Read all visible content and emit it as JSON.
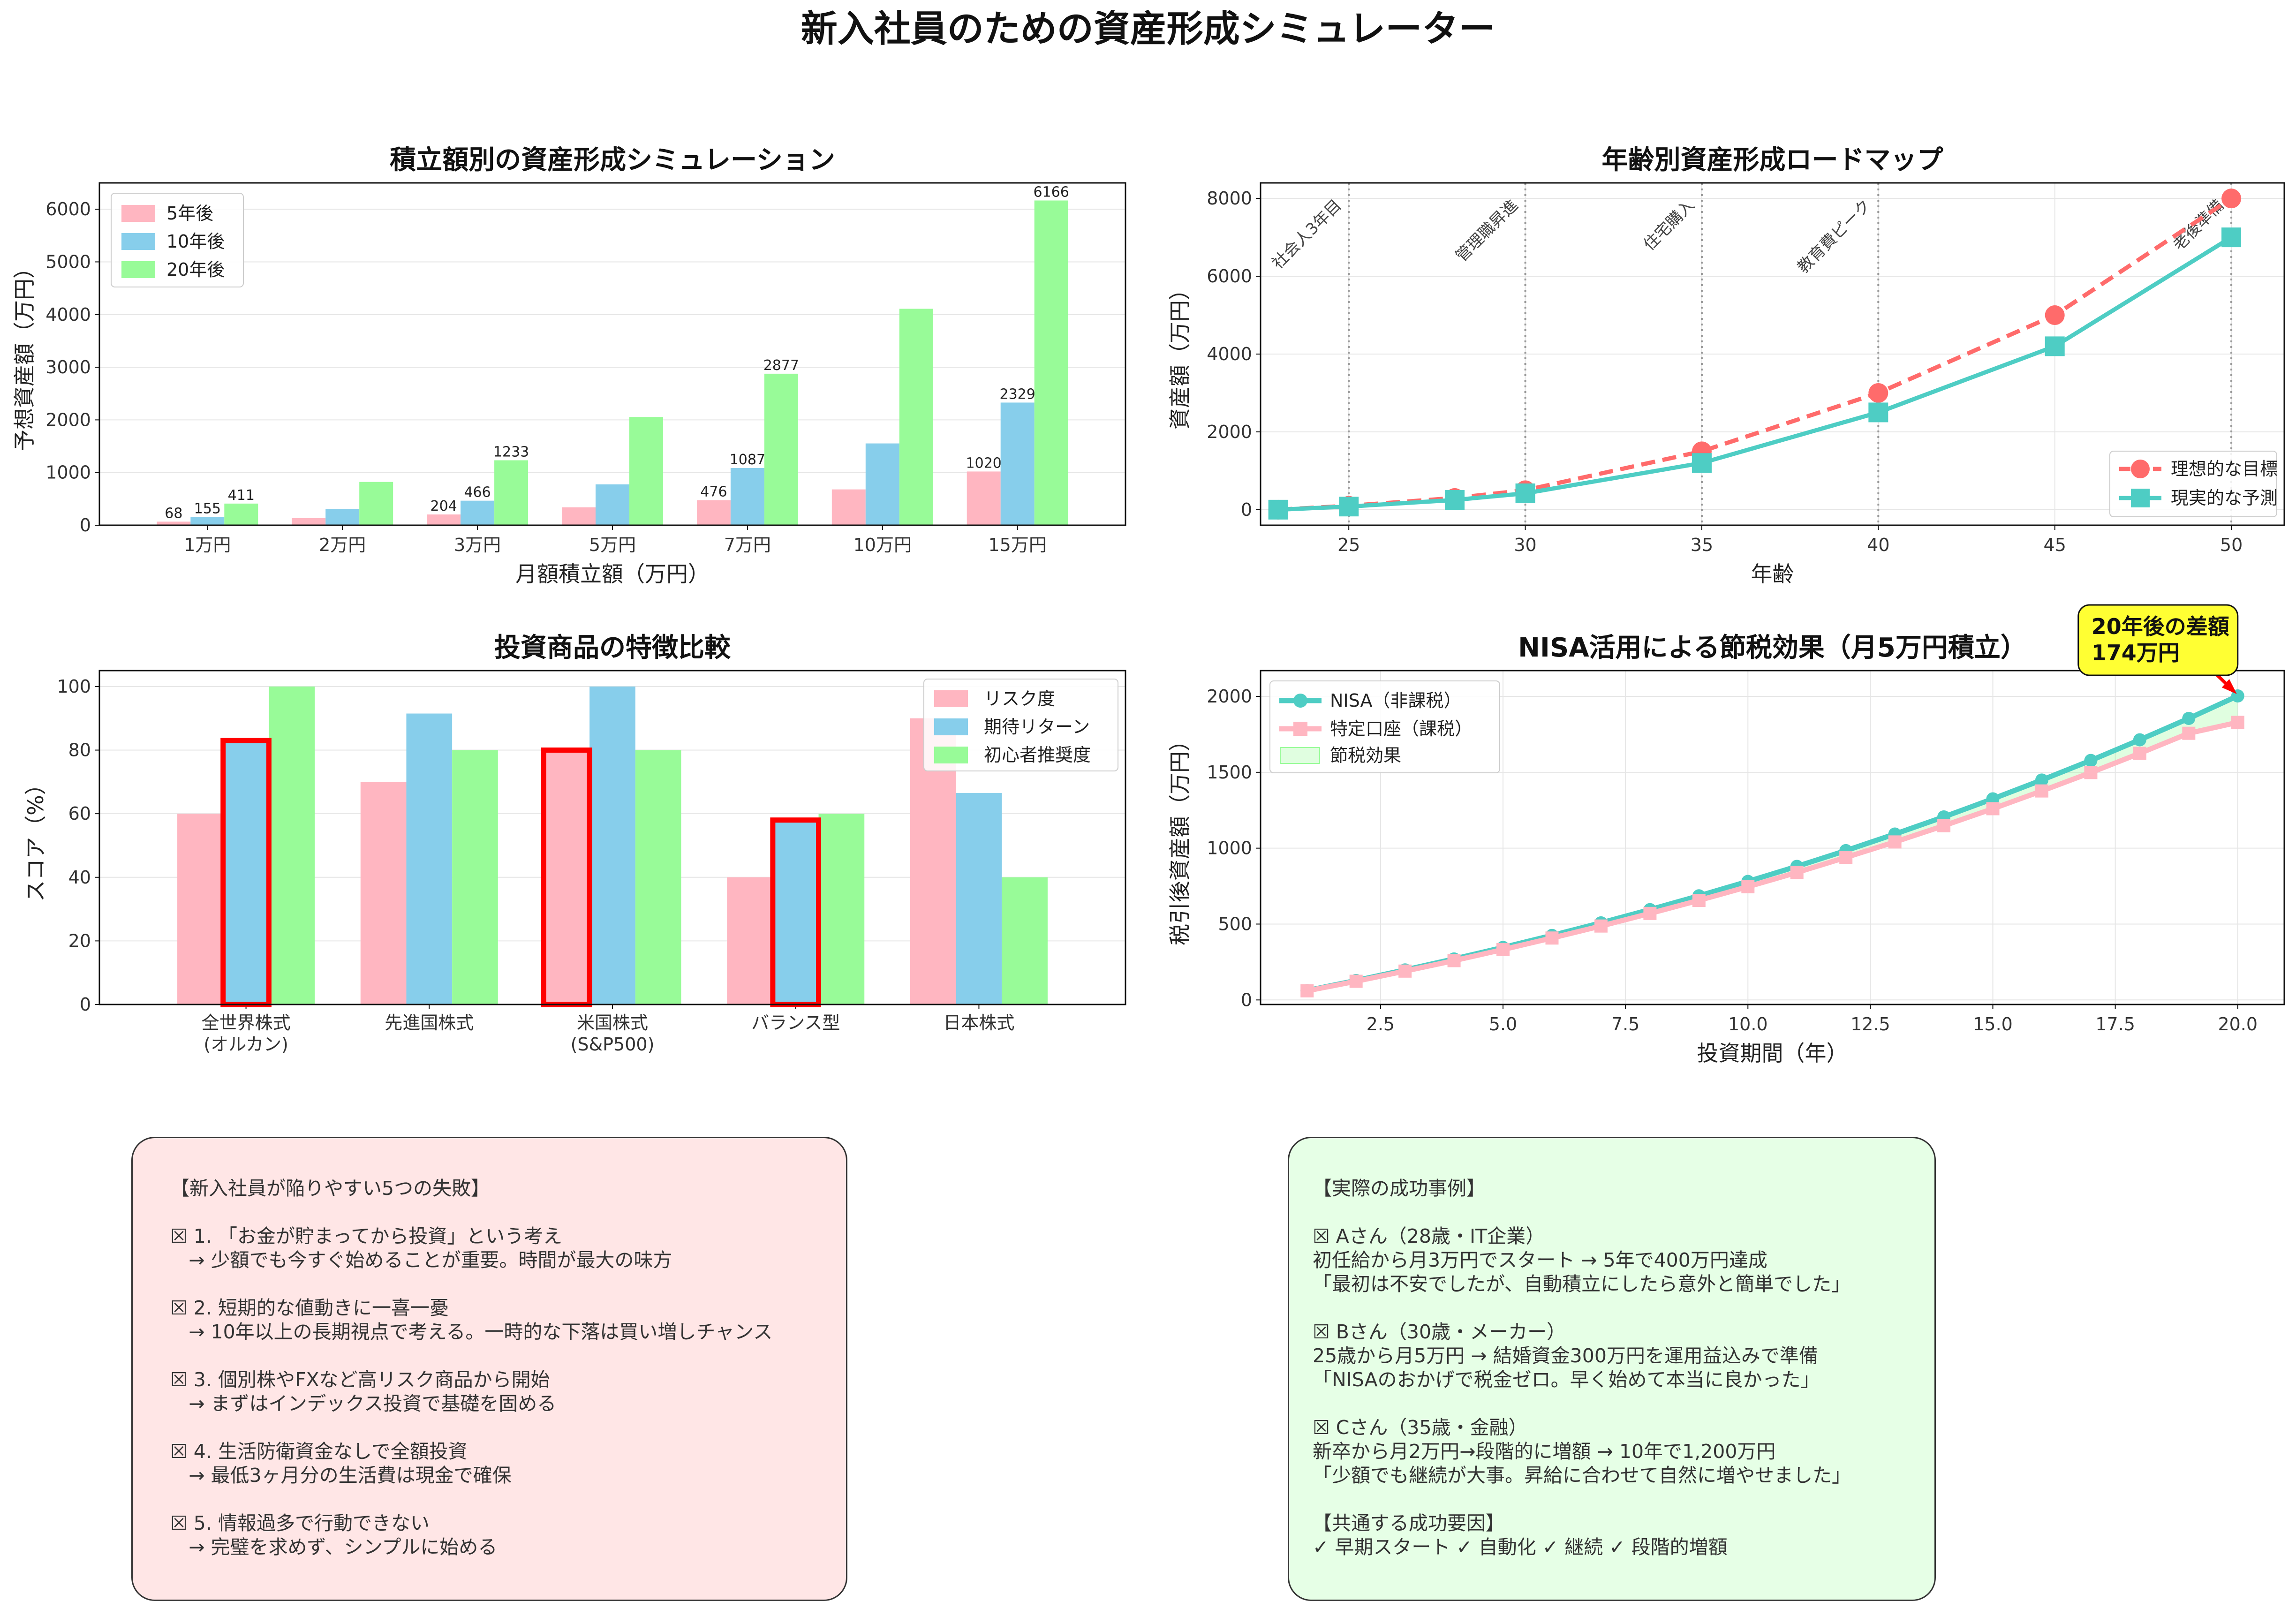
{
  "suptitle": "新入社員のための資産形成シミュレーター",
  "colors": {
    "pink": "#ffb6c1",
    "blue": "#87ceeb",
    "green": "#98fb98",
    "ideal": "#ff6b6b",
    "real": "#4ecdc4",
    "highlight": "#ff0000",
    "annotation": "#ffff33"
  },
  "chart_data": [
    {
      "type": "bar",
      "title": "積立額別の資産形成シミュレーション",
      "xlabel": "月額積立額（万円）",
      "ylabel": "予想資産額（万円）",
      "ylim": [
        0,
        6500
      ],
      "yticks": [
        0,
        1000,
        2000,
        3000,
        4000,
        5000,
        6000
      ],
      "categories": [
        "1万円",
        "2万円",
        "3万円",
        "5万円",
        "7万円",
        "10万円",
        "15万円"
      ],
      "series": [
        {
          "name": "5年後",
          "values": [
            68,
            136,
            204,
            340,
            476,
            680,
            1020
          ],
          "labels": [
            "68",
            "",
            "204",
            "",
            "476",
            "",
            "1020"
          ]
        },
        {
          "name": "10年後",
          "values": [
            155,
            310,
            466,
            776,
            1087,
            1553,
            2329
          ],
          "labels": [
            "155",
            "",
            "466",
            "",
            "1087",
            "",
            "2329"
          ]
        },
        {
          "name": "20年後",
          "values": [
            411,
            822,
            1233,
            2055,
            2877,
            4110,
            6166
          ],
          "labels": [
            "411",
            "",
            "1233",
            "",
            "2877",
            "",
            "6166"
          ]
        }
      ],
      "legend": "top-left",
      "grid": true
    },
    {
      "type": "line",
      "title": "年齢別資産形成ロードマップ",
      "xlabel": "年齢",
      "ylabel": "資産額（万円）",
      "xlim": [
        22.5,
        51.5
      ],
      "ylim": [
        -400,
        8400
      ],
      "xticks": [
        25,
        30,
        35,
        40,
        45,
        50
      ],
      "yticks": [
        0,
        2000,
        4000,
        6000,
        8000
      ],
      "x": [
        23,
        25,
        28,
        30,
        35,
        40,
        45,
        50
      ],
      "series": [
        {
          "name": "理想的な目標",
          "values": [
            0,
            100,
            300,
            500,
            1500,
            3000,
            5000,
            8000
          ],
          "style": "dashed",
          "marker": "circle"
        },
        {
          "name": "現実的な予測",
          "values": [
            0,
            80,
            250,
            420,
            1200,
            2500,
            4200,
            7000
          ],
          "style": "solid",
          "marker": "square"
        }
      ],
      "events": [
        {
          "age": 25,
          "label": "社会人3年目"
        },
        {
          "age": 30,
          "label": "管理職昇進"
        },
        {
          "age": 35,
          "label": "住宅購入"
        },
        {
          "age": 40,
          "label": "教育費ピーク"
        },
        {
          "age": 50,
          "label": "老後準備"
        }
      ],
      "legend": "bottom-right",
      "grid": true
    },
    {
      "type": "bar",
      "title": "投資商品の特徴比較",
      "xlabel": "",
      "ylabel": "スコア（%）",
      "ylim": [
        0,
        105
      ],
      "yticks": [
        0,
        20,
        40,
        60,
        80,
        100
      ],
      "categories": [
        "全世界株式\n(オルカン)",
        "先進国株式",
        "米国株式\n(S&P500)",
        "バランス型",
        "日本株式"
      ],
      "series": [
        {
          "name": "リスク度",
          "values": [
            60,
            70,
            80,
            40,
            90
          ]
        },
        {
          "name": "期待リターン",
          "values": [
            83,
            91.5,
            100,
            58,
            66.5
          ]
        },
        {
          "name": "初心者推奨度",
          "values": [
            100,
            80,
            80,
            60,
            40
          ]
        }
      ],
      "highlighted": [
        {
          "category": 0,
          "series": 1
        },
        {
          "category": 2,
          "series": 0
        },
        {
          "category": 3,
          "series": 1
        }
      ],
      "legend": "top-right",
      "grid": true
    },
    {
      "type": "line",
      "title": "NISA活用による節税効果（月5万円積立）",
      "xlabel": "投資期間（年）",
      "ylabel": "税引後資産額（万円）",
      "xlim": [
        0.05,
        20.95
      ],
      "ylim": [
        -30,
        2170
      ],
      "xticks": [
        "2.5",
        "5.0",
        "7.5",
        "10.0",
        "12.5",
        "15.0",
        "17.5",
        "20.0"
      ],
      "yticks": [
        0,
        500,
        1000,
        1500,
        2000
      ],
      "x": [
        1,
        2,
        3,
        4,
        5,
        6,
        7,
        8,
        9,
        10,
        11,
        12,
        13,
        14,
        15,
        16,
        17,
        18,
        19,
        20
      ],
      "series": [
        {
          "name": "NISA（非課税）",
          "values": [
            62,
            128,
            198,
            270,
            346,
            425,
            508,
            595,
            686,
            781,
            880,
            984,
            1093,
            1206,
            1325,
            1449,
            1578,
            1714,
            1855,
            2003
          ]
        },
        {
          "name": "特定口座（課税）",
          "values": [
            60,
            123,
            190,
            259,
            332,
            408,
            487,
            570,
            656,
            746,
            840,
            939,
            1041,
            1148,
            1260,
            1377,
            1498,
            1625,
            1757,
            1829
          ]
        }
      ],
      "fill": {
        "name": "節税効果"
      },
      "annotation": {
        "lines": [
          "20年後の差額",
          "174万円"
        ],
        "x": 20,
        "y": 2003
      },
      "legend": "top-left",
      "grid": true
    }
  ],
  "fail_box": {
    "lines": [
      "【新入社員が陥りやすい5つの失敗】",
      "",
      "☒ 1. 「お金が貯まってから投資」という考え",
      "   → 少額でも今すぐ始めることが重要。時間が最大の味方",
      "",
      "☒ 2. 短期的な値動きに一喜一憂",
      "   → 10年以上の長期視点で考える。一時的な下落は買い増しチャンス",
      "",
      "☒ 3. 個別株やFXなど高リスク商品から開始",
      "   → まずはインデックス投資で基礎を固める",
      "",
      "☒ 4. 生活防衛資金なしで全額投資",
      "   → 最低3ヶ月分の生活費は現金で確保",
      "",
      "☒ 5. 情報過多で行動できない",
      "   → 完璧を求めず、シンプルに始める"
    ]
  },
  "success_box": {
    "lines": [
      "【実際の成功事例】",
      "",
      "☒ Aさん（28歳・IT企業）",
      "初任給から月3万円でスタート → 5年で400万円達成",
      "「最初は不安でしたが、自動積立にしたら意外と簡単でした」",
      "",
      "☒ Bさん（30歳・メーカー）",
      "25歳から月5万円 → 結婚資金300万円を運用益込みで準備",
      "「NISAのおかげで税金ゼロ。早く始めて本当に良かった」",
      "",
      "☒ Cさん（35歳・金融）",
      "新卒から月2万円→段階的に増額 → 10年で1,200万円",
      "「少額でも継続が大事。昇給に合わせて自然に増やせました」",
      "",
      "【共通する成功要因】",
      "✓ 早期スタート ✓ 自動化 ✓ 継続 ✓ 段階的増額"
    ]
  }
}
